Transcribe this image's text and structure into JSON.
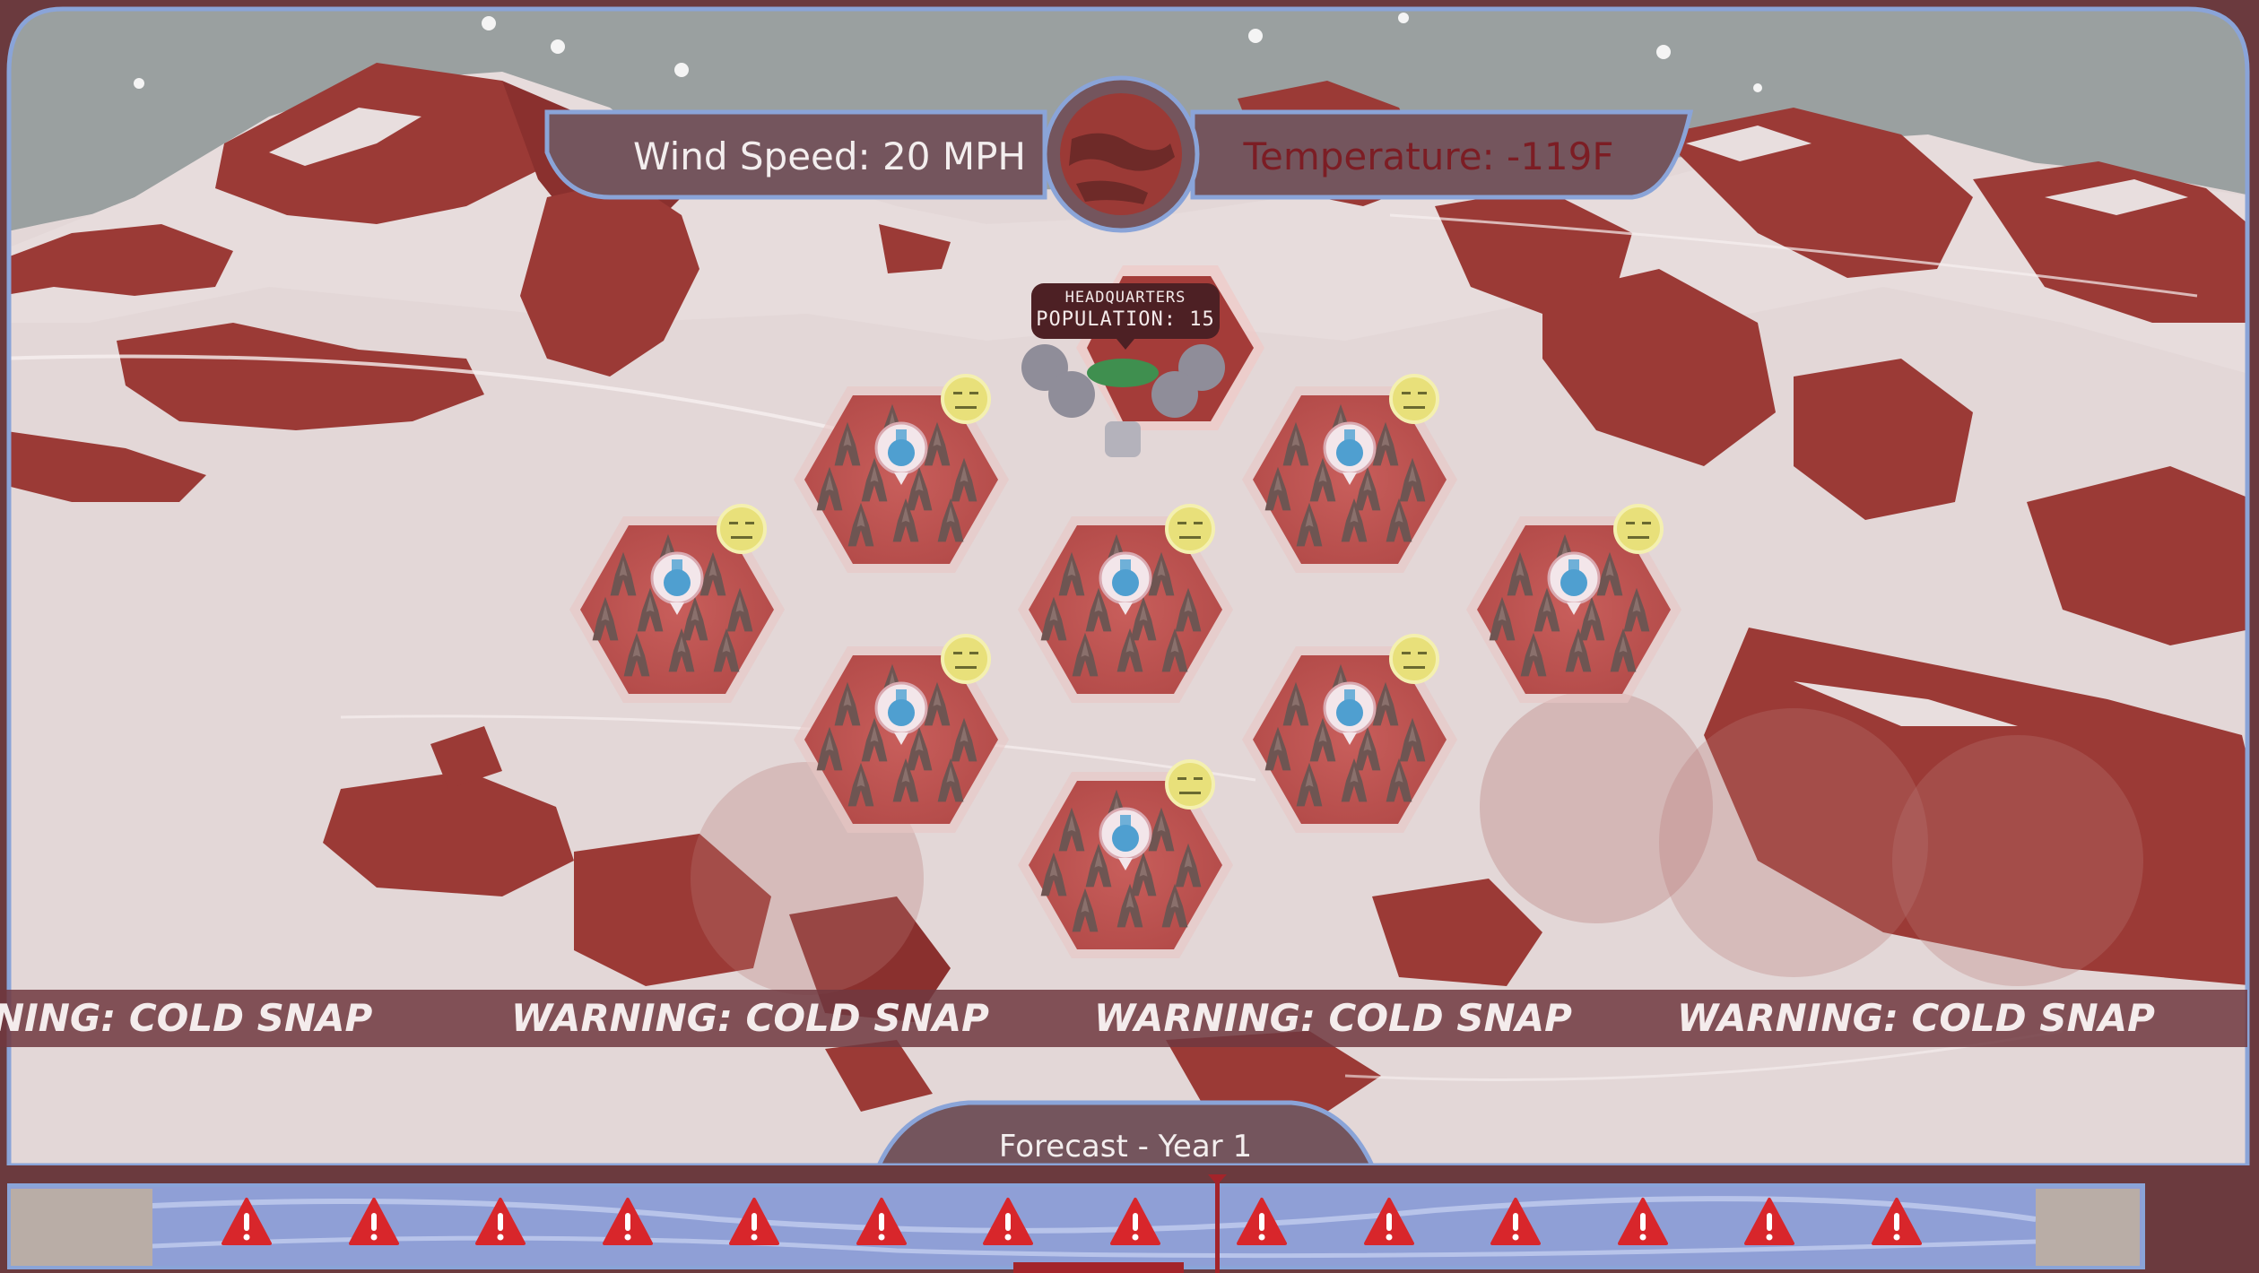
{
  "hud": {
    "wind_speed": "Wind Speed: 20 MPH",
    "temperature": "Temperature: -119F"
  },
  "headquarters": {
    "name": "HEADQUARTERS",
    "population": "POPULATION: 15"
  },
  "ticker": {
    "message": "WARNING: COLD SNAP",
    "first_partial": "NING: COLD SNAP"
  },
  "forecast": {
    "label": "Forecast - Year 1",
    "warning_count": 14,
    "current_marker_index": 8
  },
  "colony": {
    "hab_modules": 9,
    "mood": "neutral"
  },
  "colors": {
    "accent": "#8aa4d8",
    "rock": "#9b3a36",
    "snow": "#e8dede",
    "hud_panel": "#74555d",
    "warning_red": "#d8262b"
  }
}
